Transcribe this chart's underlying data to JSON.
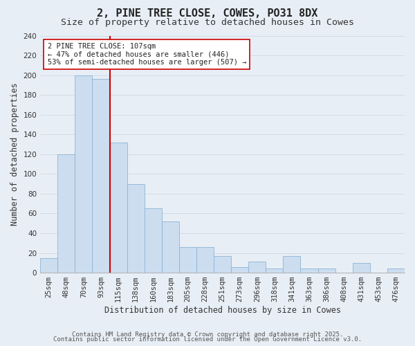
{
  "title": "2, PINE TREE CLOSE, COWES, PO31 8DX",
  "subtitle": "Size of property relative to detached houses in Cowes",
  "xlabel": "Distribution of detached houses by size in Cowes",
  "ylabel": "Number of detached properties",
  "bar_labels": [
    "25sqm",
    "48sqm",
    "70sqm",
    "93sqm",
    "115sqm",
    "138sqm",
    "160sqm",
    "183sqm",
    "205sqm",
    "228sqm",
    "251sqm",
    "273sqm",
    "296sqm",
    "318sqm",
    "341sqm",
    "363sqm",
    "386sqm",
    "408sqm",
    "431sqm",
    "453sqm",
    "476sqm"
  ],
  "bar_values": [
    15,
    120,
    200,
    196,
    132,
    90,
    65,
    52,
    26,
    26,
    17,
    6,
    11,
    4,
    17,
    4,
    4,
    0,
    10,
    0,
    4
  ],
  "bar_color": "#ccddf0",
  "bar_edge_color": "#8cb4d4",
  "grid_color": "#d0dce8",
  "background_color": "#e8eef5",
  "vline_color": "#cc0000",
  "annotation_text": "2 PINE TREE CLOSE: 107sqm\n← 47% of detached houses are smaller (446)\n53% of semi-detached houses are larger (507) →",
  "annotation_box_color": "#ffffff",
  "annotation_box_edge": "#cc0000",
  "ylim": [
    0,
    240
  ],
  "yticks": [
    0,
    20,
    40,
    60,
    80,
    100,
    120,
    140,
    160,
    180,
    200,
    220,
    240
  ],
  "footer_line1": "Contains HM Land Registry data © Crown copyright and database right 2025.",
  "footer_line2": "Contains public sector information licensed under the Open Government Licence v3.0.",
  "title_fontsize": 11,
  "subtitle_fontsize": 9.5,
  "axis_label_fontsize": 8.5,
  "tick_fontsize": 7.5,
  "annotation_fontsize": 7.5,
  "footer_fontsize": 6.5
}
